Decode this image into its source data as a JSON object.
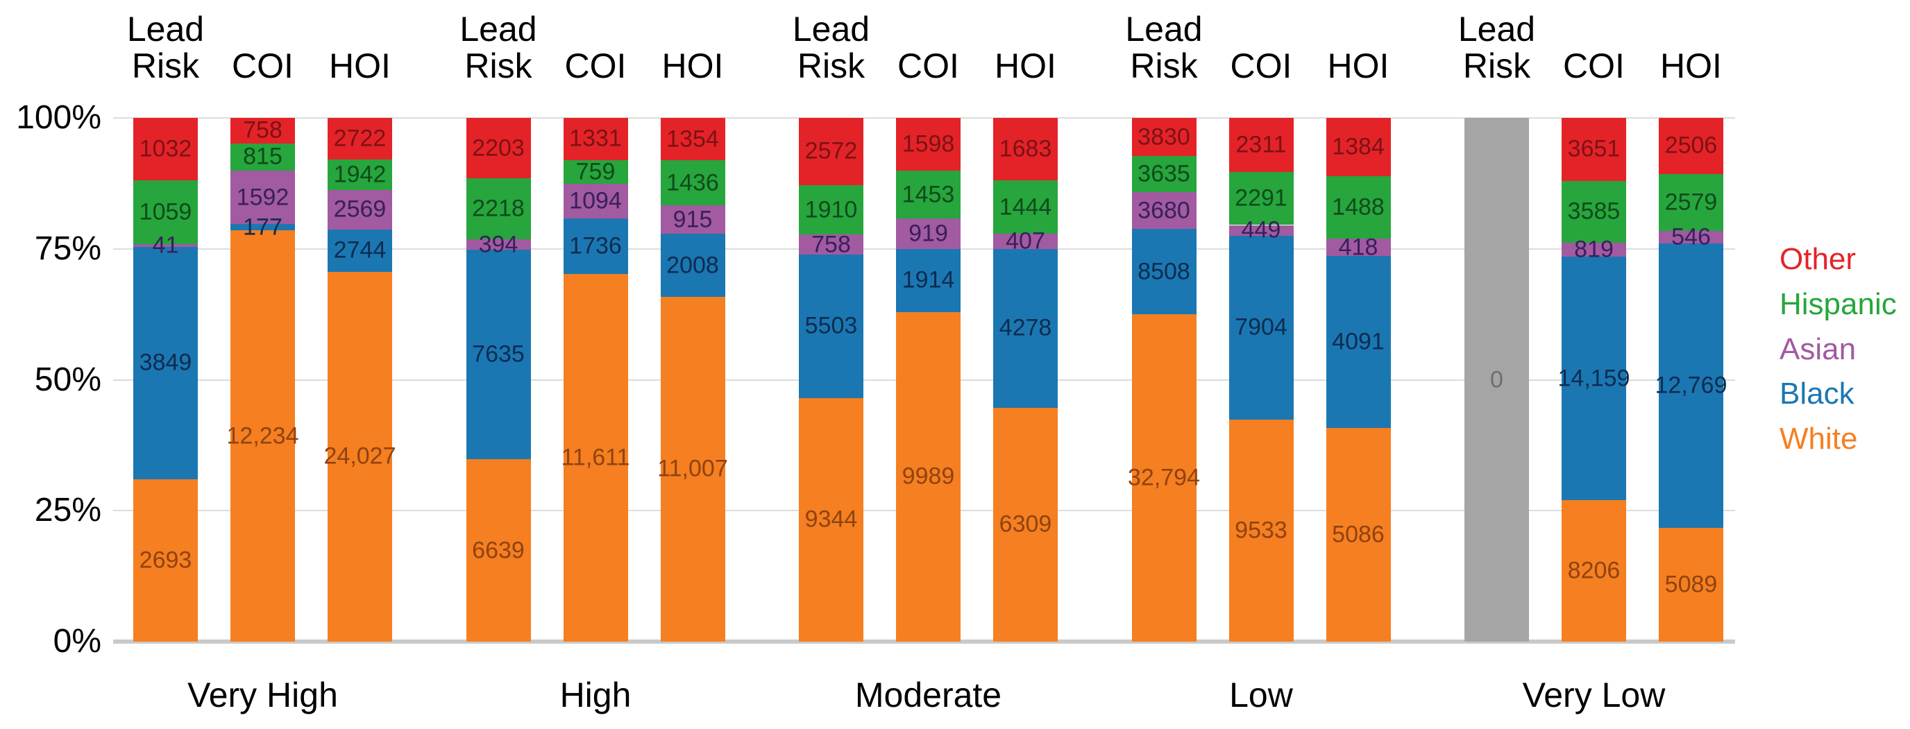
{
  "chart_data": {
    "type": "bar",
    "stacking": "percent",
    "title": "",
    "grid": "horizontal",
    "legend_position": "right",
    "y_axis": {
      "range_percent": [
        0,
        100
      ],
      "tick_labels": [
        "100%",
        "75%",
        "50%",
        "25%",
        "0%"
      ]
    },
    "series_bottom_to_top": [
      {
        "id": "white",
        "name": "White",
        "color": "#f57f21",
        "label_color": "#8f4310"
      },
      {
        "id": "black",
        "name": "Black",
        "color": "#1b77b2",
        "label_color": "#0d2c50"
      },
      {
        "id": "asian",
        "name": "Asian",
        "color": "#a25aa1",
        "label_color": "#38205c"
      },
      {
        "id": "hispanic",
        "name": "Hispanic",
        "color": "#26a63c",
        "label_color": "#114a1c"
      },
      {
        "id": "other",
        "name": "Other",
        "color": "#e42328",
        "label_color": "#7c1214"
      }
    ],
    "legend": [
      {
        "label": "Other",
        "color": "#e42328"
      },
      {
        "label": "Hispanic",
        "color": "#26a63c"
      },
      {
        "label": "Asian",
        "color": "#a25aa1"
      },
      {
        "label": "Black",
        "color": "#1b77b2"
      },
      {
        "label": "White",
        "color": "#f57f21"
      }
    ],
    "empty_bar_style": {
      "color": "#a5a5a5",
      "label_color": "#6e6e6e"
    },
    "groups": [
      {
        "label": "Very High",
        "bars": [
          {
            "name": "Lead Risk",
            "segments": [
              {
                "series": "white",
                "value": 2693,
                "label": "2693"
              },
              {
                "series": "black",
                "value": 3849,
                "label": "3849"
              },
              {
                "series": "asian",
                "value": 41,
                "label": "41"
              },
              {
                "series": "hispanic",
                "value": 1059,
                "label": "1059"
              },
              {
                "series": "other",
                "value": 1032,
                "label": "1032"
              }
            ]
          },
          {
            "name": "COI",
            "segments": [
              {
                "series": "white",
                "value": 12234,
                "label": "12,234"
              },
              {
                "series": "black",
                "value": 177,
                "label": "177"
              },
              {
                "series": "asian",
                "value": 1592,
                "label": "1592"
              },
              {
                "series": "hispanic",
                "value": 815,
                "label": "815"
              },
              {
                "series": "other",
                "value": 758,
                "label": "758"
              }
            ]
          },
          {
            "name": "HOI",
            "segments": [
              {
                "series": "white",
                "value": 24027,
                "label": "24,027"
              },
              {
                "series": "black",
                "value": 2744,
                "label": "2744"
              },
              {
                "series": "asian",
                "value": 2569,
                "label": "2569"
              },
              {
                "series": "hispanic",
                "value": 1942,
                "label": "1942"
              },
              {
                "series": "other",
                "value": 2722,
                "label": "2722"
              }
            ]
          }
        ]
      },
      {
        "label": "High",
        "bars": [
          {
            "name": "Lead Risk",
            "segments": [
              {
                "series": "white",
                "value": 6639,
                "label": "6639"
              },
              {
                "series": "black",
                "value": 7635,
                "label": "7635"
              },
              {
                "series": "asian",
                "value": 394,
                "label": "394"
              },
              {
                "series": "hispanic",
                "value": 2218,
                "label": "2218"
              },
              {
                "series": "other",
                "value": 2203,
                "label": "2203"
              }
            ]
          },
          {
            "name": "COI",
            "segments": [
              {
                "series": "white",
                "value": 11611,
                "label": "11,611"
              },
              {
                "series": "black",
                "value": 1736,
                "label": "1736"
              },
              {
                "series": "asian",
                "value": 1094,
                "label": "1094"
              },
              {
                "series": "hispanic",
                "value": 759,
                "label": "759"
              },
              {
                "series": "other",
                "value": 1331,
                "label": "1331"
              }
            ]
          },
          {
            "name": "HOI",
            "segments": [
              {
                "series": "white",
                "value": 11007,
                "label": "11,007"
              },
              {
                "series": "black",
                "value": 2008,
                "label": "2008"
              },
              {
                "series": "asian",
                "value": 915,
                "label": "915"
              },
              {
                "series": "hispanic",
                "value": 1436,
                "label": "1436"
              },
              {
                "series": "other",
                "value": 1354,
                "label": "1354"
              }
            ]
          }
        ]
      },
      {
        "label": "Moderate",
        "bars": [
          {
            "name": "Lead Risk",
            "segments": [
              {
                "series": "white",
                "value": 9344,
                "label": "9344"
              },
              {
                "series": "black",
                "value": 5503,
                "label": "5503"
              },
              {
                "series": "asian",
                "value": 758,
                "label": "758"
              },
              {
                "series": "hispanic",
                "value": 1910,
                "label": "1910"
              },
              {
                "series": "other",
                "value": 2572,
                "label": "2572"
              }
            ]
          },
          {
            "name": "COI",
            "segments": [
              {
                "series": "white",
                "value": 9989,
                "label": "9989"
              },
              {
                "series": "black",
                "value": 1914,
                "label": "1914"
              },
              {
                "series": "asian",
                "value": 919,
                "label": "919"
              },
              {
                "series": "hispanic",
                "value": 1453,
                "label": "1453"
              },
              {
                "series": "other",
                "value": 1598,
                "label": "1598"
              }
            ]
          },
          {
            "name": "HOI",
            "segments": [
              {
                "series": "white",
                "value": 6309,
                "label": "6309"
              },
              {
                "series": "black",
                "value": 4278,
                "label": "4278"
              },
              {
                "series": "asian",
                "value": 407,
                "label": "407"
              },
              {
                "series": "hispanic",
                "value": 1444,
                "label": "1444"
              },
              {
                "series": "other",
                "value": 1683,
                "label": "1683"
              }
            ]
          }
        ]
      },
      {
        "label": "Low",
        "bars": [
          {
            "name": "Lead Risk",
            "segments": [
              {
                "series": "white",
                "value": 32794,
                "label": "32,794"
              },
              {
                "series": "black",
                "value": 8508,
                "label": "8508"
              },
              {
                "series": "asian",
                "value": 3680,
                "label": "3680"
              },
              {
                "series": "hispanic",
                "value": 3635,
                "label": "3635"
              },
              {
                "series": "other",
                "value": 3830,
                "label": "3830"
              }
            ]
          },
          {
            "name": "COI",
            "segments": [
              {
                "series": "white",
                "value": 9533,
                "label": "9533"
              },
              {
                "series": "black",
                "value": 7904,
                "label": "7904"
              },
              {
                "series": "asian",
                "value": 449,
                "label": "449"
              },
              {
                "series": "hispanic",
                "value": 2291,
                "label": "2291"
              },
              {
                "series": "other",
                "value": 2311,
                "label": "2311"
              }
            ]
          },
          {
            "name": "HOI",
            "segments": [
              {
                "series": "white",
                "value": 5086,
                "label": "5086"
              },
              {
                "series": "black",
                "value": 4091,
                "label": "4091"
              },
              {
                "series": "asian",
                "value": 418,
                "label": "418"
              },
              {
                "series": "hispanic",
                "value": 1488,
                "label": "1488"
              },
              {
                "series": "other",
                "value": 1384,
                "label": "1384"
              }
            ]
          }
        ]
      },
      {
        "label": "Very Low",
        "bars": [
          {
            "name": "Lead Risk",
            "empty": true,
            "zero_label": "0"
          },
          {
            "name": "COI",
            "segments": [
              {
                "series": "white",
                "value": 8206,
                "label": "8206"
              },
              {
                "series": "black",
                "value": 14159,
                "label": "14,159"
              },
              {
                "series": "asian",
                "value": 819,
                "label": "819"
              },
              {
                "series": "hispanic",
                "value": 3585,
                "label": "3585"
              },
              {
                "series": "other",
                "value": 3651,
                "label": "3651"
              }
            ]
          },
          {
            "name": "HOI",
            "segments": [
              {
                "series": "white",
                "value": 5089,
                "label": "5089"
              },
              {
                "series": "black",
                "value": 12769,
                "label": "12,769"
              },
              {
                "series": "asian",
                "value": 546,
                "label": "546"
              },
              {
                "series": "hispanic",
                "value": 2579,
                "label": "2579"
              },
              {
                "series": "other",
                "value": 2506,
                "label": "2506"
              }
            ]
          }
        ]
      }
    ]
  }
}
